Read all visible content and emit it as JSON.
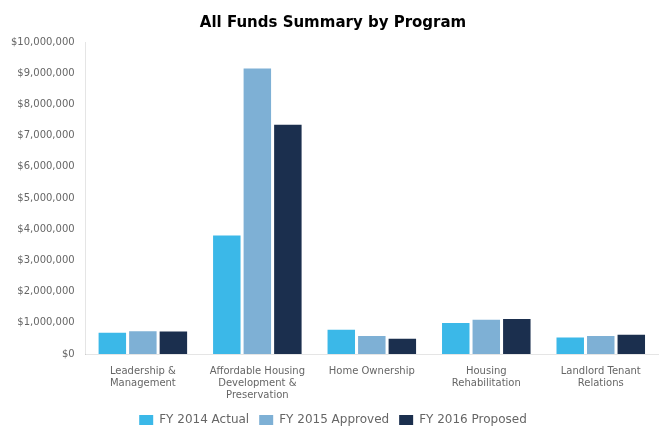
{
  "chart_data": {
    "type": "bar",
    "title": "All Funds Summary by Program",
    "categories": [
      "Leadership &\nManagement",
      "Affordable Housing\nDevelopment &\nPreservation",
      "Home Ownership",
      "Housing\nRehabilitation",
      "Landlord Tenant\nRelations"
    ],
    "series": [
      {
        "name": "FY 2014 Actual",
        "color": "#3BB8E8",
        "values": [
          680000,
          3800000,
          780000,
          990000,
          530000
        ]
      },
      {
        "name": "FY 2015 Approved",
        "color": "#7EB0D5",
        "values": [
          730000,
          9150000,
          580000,
          1100000,
          575000
        ]
      },
      {
        "name": "FY 2016 Proposed",
        "color": "#1B2F4E",
        "values": [
          720000,
          7350000,
          490000,
          1120000,
          620000
        ]
      }
    ],
    "ylim": [
      0,
      10000000
    ],
    "yticks": [
      {
        "value": 0,
        "label": "$0"
      },
      {
        "value": 1000000,
        "label": "$1,000,000"
      },
      {
        "value": 2000000,
        "label": "$2,000,000"
      },
      {
        "value": 3000000,
        "label": "$3,000,000"
      },
      {
        "value": 4000000,
        "label": "$4,000,000"
      },
      {
        "value": 5000000,
        "label": "$5,000,000"
      },
      {
        "value": 6000000,
        "label": "$6,000,000"
      },
      {
        "value": 7000000,
        "label": "$7,000,000"
      },
      {
        "value": 8000000,
        "label": "$8,000,000"
      },
      {
        "value": 9000000,
        "label": "$9,000,000"
      },
      {
        "value": 10000000,
        "label": "$10,000,000"
      }
    ],
    "grid": false,
    "legend": "bottom"
  }
}
